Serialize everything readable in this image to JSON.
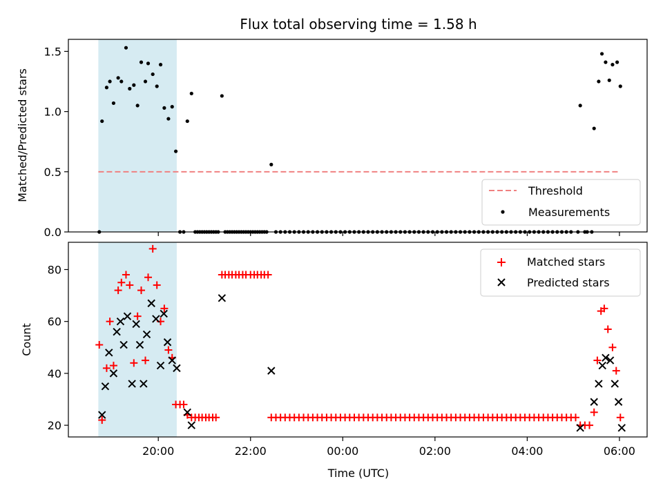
{
  "chart_data": {
    "type": "scatter",
    "title": "Flux total observing time = 1.58 h",
    "xlabel": "Time (UTC)",
    "x_ticks": [
      "20:00",
      "22:00",
      "00:00",
      "02:00",
      "04:00",
      "06:00"
    ],
    "x_tick_hours": [
      20,
      22,
      24,
      26,
      28,
      30
    ],
    "xlim_hours": [
      18.05,
      30.6
    ],
    "shaded_interval_hours": [
      18.7,
      20.4
    ],
    "colors": {
      "shade": "#add8e6",
      "threshold": "#f08080",
      "matched": "#ff0000",
      "predicted": "#000000",
      "measurement": "#000000"
    },
    "top": {
      "ylabel": "Matched/Predicted stars",
      "ylim": [
        0,
        1.6
      ],
      "y_ticks": [
        "0.0",
        "0.5",
        "1.0",
        "1.5"
      ],
      "y_tick_values": [
        0,
        0.5,
        1.0,
        1.5
      ],
      "legend_position": "lower-right",
      "threshold": {
        "name": "Threshold",
        "value": 0.5,
        "x_range_hours": [
          18.7,
          30.0
        ]
      },
      "measurements": {
        "name": "Measurements",
        "points": [
          [
            18.72,
            0
          ],
          [
            18.78,
            0.92
          ],
          [
            18.88,
            1.2
          ],
          [
            18.95,
            1.25
          ],
          [
            19.03,
            1.07
          ],
          [
            19.13,
            1.28
          ],
          [
            19.2,
            1.25
          ],
          [
            19.3,
            1.53
          ],
          [
            19.38,
            1.19
          ],
          [
            19.47,
            1.22
          ],
          [
            19.55,
            1.05
          ],
          [
            19.63,
            1.41
          ],
          [
            19.72,
            1.25
          ],
          [
            19.78,
            1.4
          ],
          [
            19.88,
            1.31
          ],
          [
            19.97,
            1.21
          ],
          [
            20.05,
            1.39
          ],
          [
            20.13,
            1.03
          ],
          [
            20.22,
            0.94
          ],
          [
            20.3,
            1.04
          ],
          [
            20.38,
            0.67
          ],
          [
            20.47,
            0
          ],
          [
            20.55,
            0
          ],
          [
            20.63,
            0.92
          ],
          [
            20.72,
            1.15
          ],
          [
            20.8,
            0
          ],
          [
            20.85,
            0
          ],
          [
            20.9,
            0
          ],
          [
            20.95,
            0
          ],
          [
            21.0,
            0
          ],
          [
            21.05,
            0
          ],
          [
            21.1,
            0
          ],
          [
            21.15,
            0
          ],
          [
            21.2,
            0
          ],
          [
            21.25,
            0
          ],
          [
            21.3,
            0
          ],
          [
            21.38,
            1.13
          ],
          [
            21.45,
            0
          ],
          [
            21.5,
            0
          ],
          [
            21.55,
            0
          ],
          [
            21.6,
            0
          ],
          [
            21.65,
            0
          ],
          [
            21.7,
            0
          ],
          [
            21.75,
            0
          ],
          [
            21.8,
            0
          ],
          [
            21.85,
            0
          ],
          [
            21.9,
            0
          ],
          [
            21.95,
            0
          ],
          [
            22.0,
            0
          ],
          [
            22.05,
            0
          ],
          [
            22.1,
            0
          ],
          [
            22.15,
            0
          ],
          [
            22.2,
            0
          ],
          [
            22.25,
            0
          ],
          [
            22.3,
            0
          ],
          [
            22.35,
            0
          ],
          [
            22.45,
            0.56
          ],
          [
            22.55,
            0
          ],
          [
            22.65,
            0
          ],
          [
            22.75,
            0
          ],
          [
            22.85,
            0
          ],
          [
            22.95,
            0
          ],
          [
            23.05,
            0
          ],
          [
            23.15,
            0
          ],
          [
            23.25,
            0
          ],
          [
            23.35,
            0
          ],
          [
            23.45,
            0
          ],
          [
            23.55,
            0
          ],
          [
            23.65,
            0
          ],
          [
            23.75,
            0
          ],
          [
            23.85,
            0
          ],
          [
            23.95,
            0
          ],
          [
            24.05,
            0
          ],
          [
            24.15,
            0
          ],
          [
            24.25,
            0
          ],
          [
            24.35,
            0
          ],
          [
            24.45,
            0
          ],
          [
            24.55,
            0
          ],
          [
            24.65,
            0
          ],
          [
            24.75,
            0
          ],
          [
            24.85,
            0
          ],
          [
            24.95,
            0
          ],
          [
            25.05,
            0
          ],
          [
            25.15,
            0
          ],
          [
            25.25,
            0
          ],
          [
            25.35,
            0
          ],
          [
            25.45,
            0
          ],
          [
            25.55,
            0
          ],
          [
            25.65,
            0
          ],
          [
            25.75,
            0
          ],
          [
            25.85,
            0
          ],
          [
            25.95,
            0
          ],
          [
            26.05,
            0
          ],
          [
            26.15,
            0
          ],
          [
            26.25,
            0
          ],
          [
            26.35,
            0
          ],
          [
            26.45,
            0
          ],
          [
            26.55,
            0
          ],
          [
            26.65,
            0
          ],
          [
            26.75,
            0
          ],
          [
            26.85,
            0
          ],
          [
            26.95,
            0
          ],
          [
            27.05,
            0
          ],
          [
            27.15,
            0
          ],
          [
            27.25,
            0
          ],
          [
            27.35,
            0
          ],
          [
            27.45,
            0
          ],
          [
            27.55,
            0
          ],
          [
            27.65,
            0
          ],
          [
            27.75,
            0
          ],
          [
            27.85,
            0
          ],
          [
            27.95,
            0
          ],
          [
            28.05,
            0
          ],
          [
            28.15,
            0
          ],
          [
            28.25,
            0
          ],
          [
            28.35,
            0
          ],
          [
            28.45,
            0
          ],
          [
            28.55,
            0
          ],
          [
            28.65,
            0
          ],
          [
            28.75,
            0
          ],
          [
            28.85,
            0
          ],
          [
            28.95,
            0
          ],
          [
            29.1,
            0
          ],
          [
            29.15,
            1.05
          ],
          [
            29.25,
            0
          ],
          [
            29.3,
            0
          ],
          [
            29.4,
            0
          ],
          [
            29.45,
            0.86
          ],
          [
            29.55,
            1.25
          ],
          [
            29.62,
            1.48
          ],
          [
            29.7,
            1.41
          ],
          [
            29.78,
            1.26
          ],
          [
            29.85,
            1.39
          ],
          [
            29.95,
            1.41
          ],
          [
            30.02,
            1.21
          ]
        ]
      }
    },
    "bottom": {
      "ylabel": "Count",
      "ylim": [
        15.5,
        90.5
      ],
      "y_ticks": [
        "20",
        "40",
        "60",
        "80"
      ],
      "y_tick_values": [
        20,
        40,
        60,
        80
      ],
      "legend_position": "upper-right",
      "matched": {
        "name": "Matched stars",
        "points": [
          [
            18.72,
            51
          ],
          [
            18.78,
            22
          ],
          [
            18.88,
            42
          ],
          [
            18.95,
            60
          ],
          [
            19.03,
            43
          ],
          [
            19.13,
            72
          ],
          [
            19.2,
            75
          ],
          [
            19.3,
            78
          ],
          [
            19.38,
            74
          ],
          [
            19.47,
            44
          ],
          [
            19.55,
            62
          ],
          [
            19.63,
            72
          ],
          [
            19.72,
            45
          ],
          [
            19.78,
            77
          ],
          [
            19.88,
            88
          ],
          [
            19.97,
            74
          ],
          [
            20.05,
            60
          ],
          [
            20.13,
            65
          ],
          [
            20.22,
            49
          ],
          [
            20.3,
            46
          ],
          [
            20.38,
            28
          ],
          [
            20.47,
            28
          ],
          [
            20.55,
            28
          ],
          [
            20.63,
            24
          ],
          [
            20.72,
            23
          ],
          [
            20.8,
            23
          ],
          [
            20.88,
            23
          ],
          [
            20.95,
            23
          ],
          [
            21.03,
            23
          ],
          [
            21.1,
            23
          ],
          [
            21.18,
            23
          ],
          [
            21.25,
            23
          ],
          [
            21.38,
            78
          ],
          [
            21.45,
            78
          ],
          [
            21.53,
            78
          ],
          [
            21.6,
            78
          ],
          [
            21.68,
            78
          ],
          [
            21.75,
            78
          ],
          [
            21.83,
            78
          ],
          [
            21.9,
            78
          ],
          [
            22.0,
            78
          ],
          [
            22.08,
            78
          ],
          [
            22.15,
            78
          ],
          [
            22.23,
            78
          ],
          [
            22.3,
            78
          ],
          [
            22.38,
            78
          ],
          [
            22.45,
            23
          ],
          [
            22.55,
            23
          ],
          [
            22.65,
            23
          ],
          [
            22.75,
            23
          ],
          [
            22.85,
            23
          ],
          [
            22.95,
            23
          ],
          [
            23.05,
            23
          ],
          [
            23.15,
            23
          ],
          [
            23.25,
            23
          ],
          [
            23.35,
            23
          ],
          [
            23.45,
            23
          ],
          [
            23.55,
            23
          ],
          [
            23.65,
            23
          ],
          [
            23.75,
            23
          ],
          [
            23.85,
            23
          ],
          [
            23.95,
            23
          ],
          [
            24.05,
            23
          ],
          [
            24.15,
            23
          ],
          [
            24.25,
            23
          ],
          [
            24.35,
            23
          ],
          [
            24.45,
            23
          ],
          [
            24.55,
            23
          ],
          [
            24.65,
            23
          ],
          [
            24.75,
            23
          ],
          [
            24.85,
            23
          ],
          [
            24.95,
            23
          ],
          [
            25.05,
            23
          ],
          [
            25.15,
            23
          ],
          [
            25.25,
            23
          ],
          [
            25.35,
            23
          ],
          [
            25.45,
            23
          ],
          [
            25.55,
            23
          ],
          [
            25.65,
            23
          ],
          [
            25.75,
            23
          ],
          [
            25.85,
            23
          ],
          [
            25.95,
            23
          ],
          [
            26.05,
            23
          ],
          [
            26.15,
            23
          ],
          [
            26.25,
            23
          ],
          [
            26.35,
            23
          ],
          [
            26.45,
            23
          ],
          [
            26.55,
            23
          ],
          [
            26.65,
            23
          ],
          [
            26.75,
            23
          ],
          [
            26.85,
            23
          ],
          [
            26.95,
            23
          ],
          [
            27.05,
            23
          ],
          [
            27.15,
            23
          ],
          [
            27.25,
            23
          ],
          [
            27.35,
            23
          ],
          [
            27.45,
            23
          ],
          [
            27.55,
            23
          ],
          [
            27.65,
            23
          ],
          [
            27.75,
            23
          ],
          [
            27.85,
            23
          ],
          [
            27.95,
            23
          ],
          [
            28.05,
            23
          ],
          [
            28.15,
            23
          ],
          [
            28.25,
            23
          ],
          [
            28.35,
            23
          ],
          [
            28.45,
            23
          ],
          [
            28.55,
            23
          ],
          [
            28.65,
            23
          ],
          [
            28.75,
            23
          ],
          [
            28.85,
            23
          ],
          [
            28.95,
            23
          ],
          [
            29.05,
            23
          ],
          [
            29.15,
            20
          ],
          [
            29.25,
            20
          ],
          [
            29.35,
            20
          ],
          [
            29.45,
            25
          ],
          [
            29.52,
            45
          ],
          [
            29.6,
            64
          ],
          [
            29.67,
            65
          ],
          [
            29.75,
            57
          ],
          [
            29.85,
            50
          ],
          [
            29.93,
            41
          ],
          [
            30.02,
            23
          ]
        ]
      },
      "predicted": {
        "name": "Predicted stars",
        "points": [
          [
            18.78,
            24
          ],
          [
            18.85,
            35
          ],
          [
            18.93,
            48
          ],
          [
            19.03,
            40
          ],
          [
            19.1,
            56
          ],
          [
            19.18,
            60
          ],
          [
            19.25,
            51
          ],
          [
            19.33,
            62
          ],
          [
            19.43,
            36
          ],
          [
            19.52,
            59
          ],
          [
            19.6,
            51
          ],
          [
            19.68,
            36
          ],
          [
            19.75,
            55
          ],
          [
            19.85,
            67
          ],
          [
            19.95,
            61
          ],
          [
            20.05,
            43
          ],
          [
            20.12,
            63
          ],
          [
            20.2,
            52
          ],
          [
            20.3,
            45
          ],
          [
            20.4,
            42
          ],
          [
            20.63,
            25
          ],
          [
            20.72,
            20
          ],
          [
            21.38,
            69
          ],
          [
            22.45,
            41
          ],
          [
            29.15,
            19
          ],
          [
            29.45,
            29
          ],
          [
            29.55,
            36
          ],
          [
            29.63,
            43
          ],
          [
            29.7,
            46
          ],
          [
            29.8,
            45
          ],
          [
            29.9,
            36
          ],
          [
            29.98,
            29
          ],
          [
            30.05,
            19
          ]
        ]
      }
    }
  }
}
